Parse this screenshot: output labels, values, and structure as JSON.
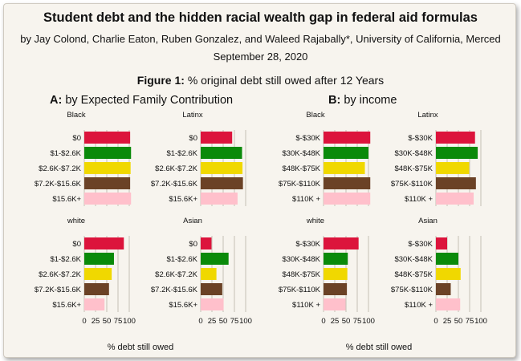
{
  "header": {
    "title": "Student debt and the hidden racial wealth gap in federal aid formulas",
    "authors": "by Jay Colond, Charlie Eaton, Ruben Gonzalez, and Waleed Rajabally*, University of California, Merced",
    "date": "September 28, 2020",
    "figure_label": "Figure 1:",
    "figure_caption": "% original debt still owed after 12 Years"
  },
  "panels": [
    {
      "letter": "A:",
      "title": "by Expected Family Contribution"
    },
    {
      "letter": "B:",
      "title": "by income"
    }
  ],
  "colors": {
    "cat1": "#dc143c",
    "cat2": "#0a8a0a",
    "cat3": "#f0d800",
    "cat4": "#6b4226",
    "cat5": "#ffc0cb",
    "background": "#f7f4ee"
  },
  "chart_data": [
    {
      "type": "bar",
      "orientation": "horizontal",
      "panel": "A",
      "title": "Black",
      "categories": [
        "$0",
        "$1-$2.6K",
        "$2.6K-$7.2K",
        "$7.2K-$15.6K",
        "$15.6K+"
      ],
      "values": [
        102,
        104,
        103,
        102,
        104
      ],
      "xlim": [
        0,
        100
      ],
      "xticks": [
        "0",
        "25",
        "50",
        "75",
        "100"
      ],
      "xlabel": "% debt still owed"
    },
    {
      "type": "bar",
      "orientation": "horizontal",
      "panel": "A",
      "title": "Latinx",
      "categories": [
        "$0",
        "$1-$2.6K",
        "$2.6K-$7.2K",
        "$7.2K-$15.6K",
        "$15.6K+"
      ],
      "values": [
        70,
        92,
        93,
        94,
        82
      ],
      "xlim": [
        0,
        100
      ],
      "xticks": [
        "0",
        "25",
        "50",
        "75",
        "100"
      ],
      "xlabel": "% debt still owed"
    },
    {
      "type": "bar",
      "orientation": "horizontal",
      "panel": "A",
      "title": "white",
      "categories": [
        "$0",
        "$1-$2.6K",
        "$2.6K-$7.2K",
        "$7.2K-$15.6K",
        "$15.6K+"
      ],
      "values": [
        88,
        66,
        61,
        55,
        45
      ],
      "xlim": [
        0,
        100
      ],
      "xticks": [
        "0",
        "25",
        "50",
        "75",
        "100"
      ],
      "xlabel": "% debt still owed"
    },
    {
      "type": "bar",
      "orientation": "horizontal",
      "panel": "A",
      "title": "Asian",
      "categories": [
        "$0",
        "$1-$2.6K",
        "$2.6K-$7.2K",
        "$7.2K-$15.6K",
        "$15.6K+"
      ],
      "values": [
        24,
        62,
        35,
        48,
        51
      ],
      "xlim": [
        0,
        100
      ],
      "xticks": [
        "0",
        "25",
        "50",
        "75",
        "100"
      ],
      "xlabel": "% debt still owed"
    },
    {
      "type": "bar",
      "orientation": "horizontal",
      "panel": "B",
      "title": "Black",
      "categories": [
        "$-$30K",
        "$30K-$48K",
        "$48K-$75K",
        "$75K-$110K",
        "$110K +"
      ],
      "values": [
        104,
        100,
        92,
        104,
        104
      ],
      "xlim": [
        0,
        100
      ],
      "xticks": [
        "0",
        "25",
        "50",
        "75",
        "100"
      ],
      "xlabel": "% debt still owed"
    },
    {
      "type": "bar",
      "orientation": "horizontal",
      "panel": "B",
      "title": "Latinx",
      "categories": [
        "$-$30K",
        "$30K-$48K",
        "$48K-$75K",
        "$75K-$110K",
        "$110K +"
      ],
      "values": [
        87,
        93,
        74,
        89,
        84
      ],
      "xlim": [
        0,
        100
      ],
      "xticks": [
        "0",
        "25",
        "50",
        "75",
        "100"
      ],
      "xlabel": "% debt still owed"
    },
    {
      "type": "bar",
      "orientation": "horizontal",
      "panel": "B",
      "title": "white",
      "categories": [
        "$-$30K",
        "$30K-$48K",
        "$48K-$75K",
        "$75K-$110K",
        "$110K +"
      ],
      "values": [
        78,
        54,
        53,
        52,
        49
      ],
      "xlim": [
        0,
        100
      ],
      "xticks": [
        "0",
        "25",
        "50",
        "75",
        "100"
      ],
      "xlabel": "% debt still owed"
    },
    {
      "type": "bar",
      "orientation": "horizontal",
      "panel": "B",
      "title": "Asian",
      "categories": [
        "$-$30K",
        "$30K-$48K",
        "$48K-$75K",
        "$75K-$110K",
        "$110K +"
      ],
      "values": [
        25,
        50,
        55,
        33,
        54
      ],
      "xlim": [
        0,
        100
      ],
      "xticks": [
        "0",
        "25",
        "50",
        "75",
        "100"
      ],
      "xlabel": "% debt still owed"
    }
  ]
}
